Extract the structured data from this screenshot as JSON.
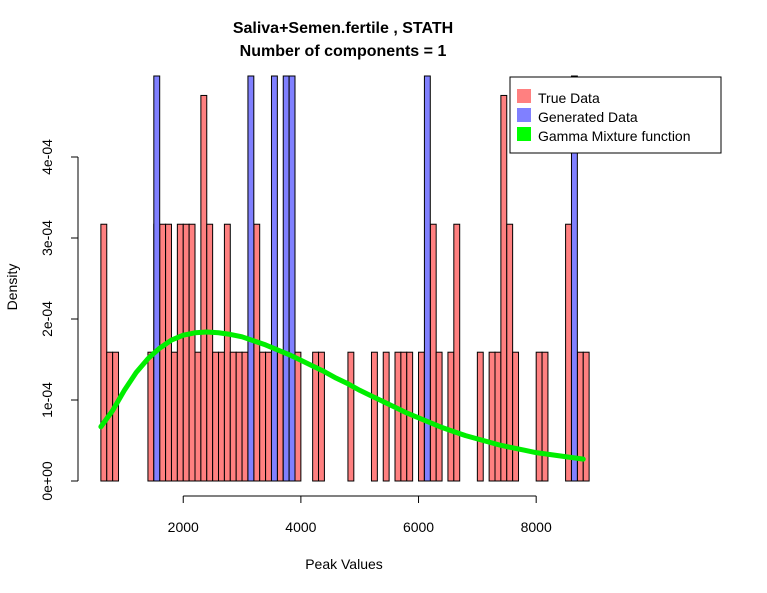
{
  "chart_data": {
    "type": "bar",
    "title_line1": "Saliva+Semen.fertile , STATH",
    "title_line2": "Number of components =  1",
    "xlabel": "Peak Values",
    "ylabel": "Density",
    "xlim": [
      500,
      9000
    ],
    "ylim": [
      0,
      0.0005
    ],
    "x_ticks": [
      2000,
      4000,
      6000,
      8000
    ],
    "x_tick_labels": [
      "2000",
      "4000",
      "6000",
      "8000"
    ],
    "y_ticks": [
      0,
      0.0001,
      0.0002,
      0.0003,
      0.0004
    ],
    "y_tick_labels": [
      "0e+00",
      "1e-04",
      "2e-04",
      "3e-04",
      "4e-04"
    ],
    "bin_width": 100,
    "colors": {
      "true_data": "#ff8080",
      "generated_data": "#8080ff",
      "gamma_curve": "#00ee00"
    },
    "legend": {
      "position": "top-right",
      "items": [
        {
          "label": "True Data",
          "color": "#ff8080"
        },
        {
          "label": "Generated Data",
          "color": "#8080ff"
        },
        {
          "label": "Gamma Mixture function",
          "color": "#00ff00"
        }
      ]
    },
    "series": [
      {
        "name": "True Data",
        "bin_starts": [
          600,
          700,
          800,
          1400,
          1500,
          1600,
          1700,
          1800,
          1900,
          2000,
          2100,
          2200,
          2300,
          2400,
          2500,
          2600,
          2700,
          2800,
          2900,
          3000,
          3100,
          3200,
          3300,
          3400,
          3500,
          3600,
          3700,
          3800,
          3900,
          4200,
          4300,
          4800,
          5200,
          5400,
          5600,
          5700,
          5800,
          6000,
          6100,
          6200,
          6300,
          6500,
          6600,
          7000,
          7200,
          7300,
          7400,
          7500,
          7600,
          8000,
          8100,
          8500,
          8600,
          8700,
          8800
        ],
        "values": [
          0.000317,
          0.000159,
          0.000159,
          0.000159,
          0.000317,
          0.000317,
          0.000317,
          0.000159,
          0.000317,
          0.000317,
          0.000317,
          0.000159,
          0.000476,
          0.000317,
          0.000159,
          0.000159,
          0.000317,
          0.000159,
          0.000159,
          0.000159,
          0.000159,
          0.000317,
          0.000159,
          0.000159,
          0.000159,
          0.000159,
          0.000159,
          0.000159,
          0.000159,
          0.000159,
          0.000159,
          0.000159,
          0.000159,
          0.000159,
          0.000159,
          0.000159,
          0.000159,
          0.000159,
          0.000159,
          0.000317,
          0.000159,
          0.000159,
          0.000317,
          0.000159,
          0.000159,
          0.000159,
          0.000476,
          0.000317,
          0.000159,
          0.000159,
          0.000159,
          0.000317,
          0.000159,
          0.000159,
          0.000159
        ]
      },
      {
        "name": "Generated Data",
        "bin_starts": [
          1500,
          3100,
          3500,
          3700,
          3800,
          6100,
          8600
        ],
        "values": [
          0.0005,
          0.0005,
          0.0005,
          0.0005,
          0.0005,
          0.0005,
          0.0005
        ]
      },
      {
        "name": "Gamma Mixture function",
        "type": "line",
        "x": [
          600,
          800,
          1000,
          1200,
          1400,
          1600,
          1800,
          2000,
          2200,
          2400,
          2600,
          2800,
          3000,
          3200,
          3400,
          3600,
          3800,
          4000,
          4200,
          4400,
          4600,
          4800,
          5000,
          5200,
          5400,
          5600,
          5800,
          6000,
          6200,
          6400,
          6600,
          6800,
          7000,
          7200,
          7400,
          7600,
          7800,
          8000,
          8200,
          8400,
          8600,
          8800
        ],
        "y": [
          6.7e-05,
          8.7e-05,
          0.000112,
          0.000134,
          0.000151,
          0.000164,
          0.000174,
          0.00018,
          0.000183,
          0.000184,
          0.000183,
          0.000181,
          0.000178,
          0.000173,
          0.000168,
          0.000162,
          0.000156,
          0.000149,
          0.000142,
          0.000135,
          0.000127,
          0.00012,
          0.000112,
          0.000105,
          9.8e-05,
          9.1e-05,
          8.4e-05,
          7.8e-05,
          7.2e-05,
          6.6e-05,
          6.1e-05,
          5.6e-05,
          5.2e-05,
          4.8e-05,
          4.4e-05,
          4.1e-05,
          3.8e-05,
          3.5e-05,
          3.3e-05,
          3.1e-05,
          2.9e-05,
          2.7e-05
        ]
      }
    ]
  }
}
